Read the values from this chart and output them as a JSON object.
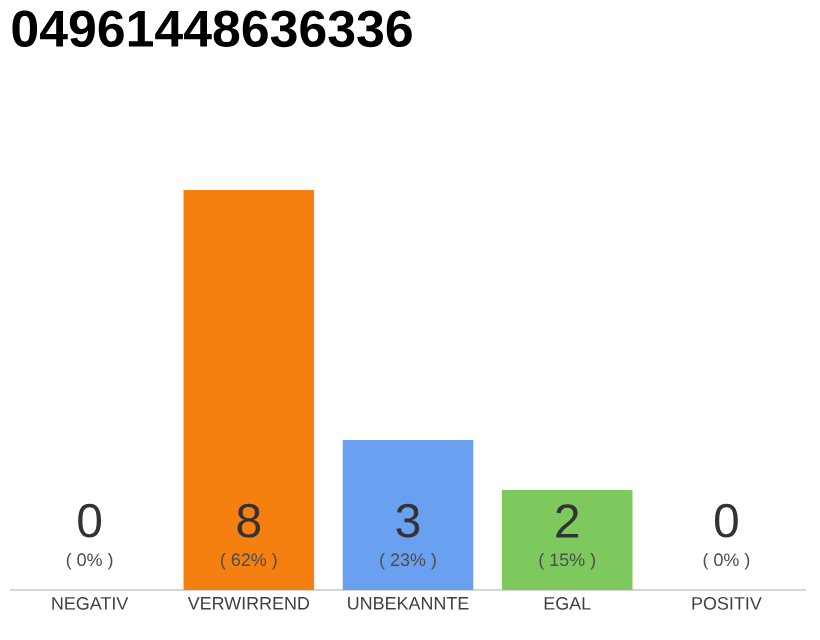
{
  "chart_data": {
    "type": "bar",
    "title": "04961448636336",
    "categories": [
      "NEGATIV",
      "VERWIRREND",
      "UNBEKANNTE",
      "EGAL",
      "POSITIV"
    ],
    "values": [
      0,
      8,
      3,
      2,
      0
    ],
    "colors": [
      "#eeeeee",
      "#f57f0f",
      "#6aa0f0",
      "#7dc95e",
      "#eeeeee"
    ],
    "value_labels": [
      "0",
      "8",
      "3",
      "2",
      "0"
    ],
    "annotations": [
      {
        "text": "( 0% )",
        "x": "NEGATIV",
        "y": 0
      },
      {
        "text": "( 62% )",
        "x": "VERWIRREND",
        "y": 0
      },
      {
        "text": "( 23% )",
        "x": "UNBEKANNTE",
        "y": 0
      },
      {
        "text": "( 15% )",
        "x": "EGAL",
        "y": 0
      },
      {
        "text": "( 0% )",
        "x": "POSITIV",
        "y": 0
      }
    ]
  }
}
